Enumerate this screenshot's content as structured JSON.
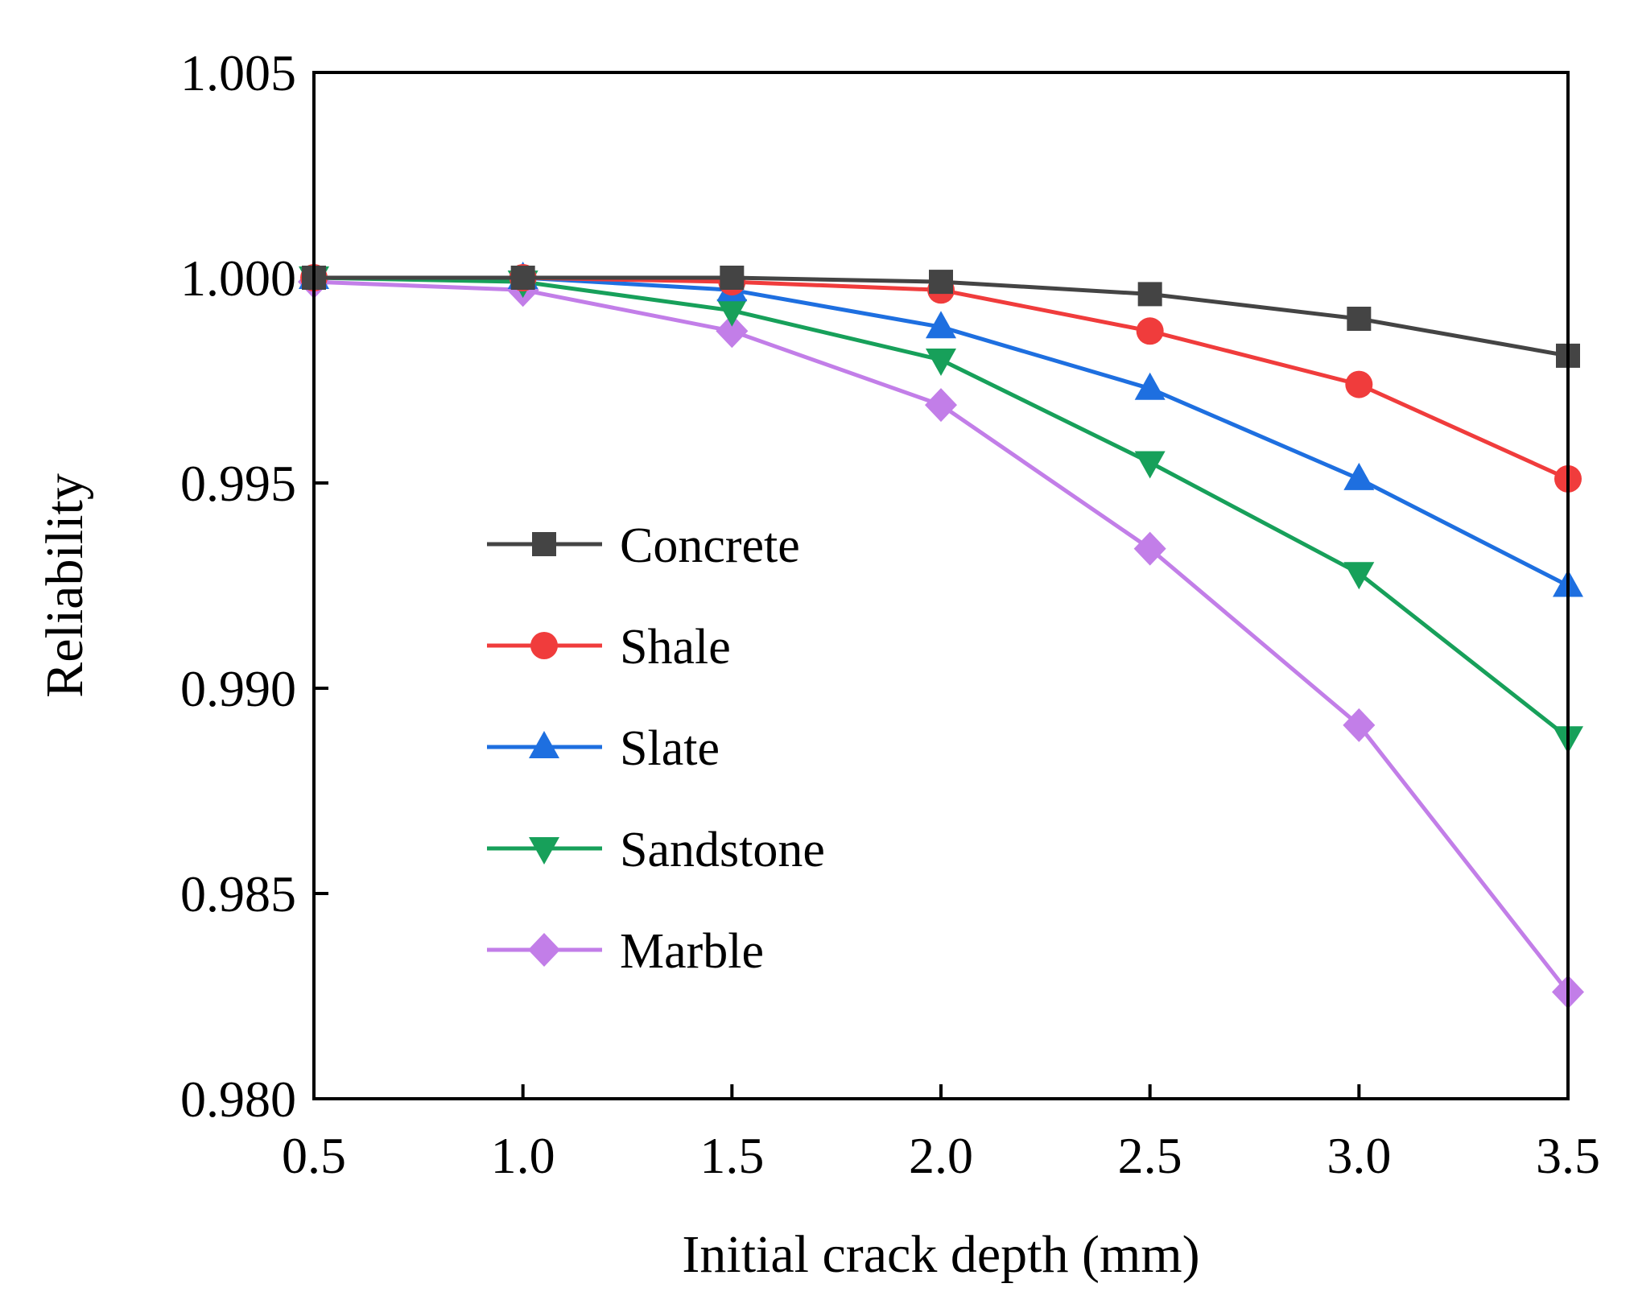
{
  "chart_data": {
    "type": "line",
    "xlabel": "Initial crack depth (mm)",
    "ylabel": "Reliability",
    "xlim": [
      0.5,
      3.5
    ],
    "ylim": [
      0.98,
      1.005
    ],
    "xticks": [
      "0.5",
      "1.0",
      "1.5",
      "2.0",
      "2.5",
      "3.0",
      "3.5"
    ],
    "yticks": [
      "0.980",
      "0.985",
      "0.990",
      "0.995",
      "1.000",
      "1.005"
    ],
    "x": [
      0.5,
      1.0,
      1.5,
      2.0,
      2.5,
      3.0,
      3.5
    ],
    "legend_position": "center-left",
    "series": [
      {
        "name": "Concrete",
        "color": "#444444",
        "marker": "square",
        "values": [
          1.0,
          1.0,
          1.0,
          0.9999,
          0.9996,
          0.999,
          0.9981
        ]
      },
      {
        "name": "Shale",
        "color": "#f03c3c",
        "marker": "circle",
        "values": [
          1.0,
          1.0,
          0.9999,
          0.9997,
          0.9987,
          0.9974,
          0.9951
        ]
      },
      {
        "name": "Slate",
        "color": "#1e6fe0",
        "marker": "triangle-up",
        "values": [
          1.0,
          1.0,
          0.9997,
          0.9988,
          0.9973,
          0.9951,
          0.9925
        ]
      },
      {
        "name": "Sandstone",
        "color": "#17a05a",
        "marker": "triangle-down",
        "values": [
          1.0,
          0.9999,
          0.9992,
          0.998,
          0.9955,
          0.9928,
          0.9888
        ]
      },
      {
        "name": "Marble",
        "color": "#c27ee8",
        "marker": "diamond",
        "values": [
          0.9999,
          0.9997,
          0.9987,
          0.9969,
          0.9934,
          0.9891,
          0.9826
        ]
      }
    ]
  }
}
